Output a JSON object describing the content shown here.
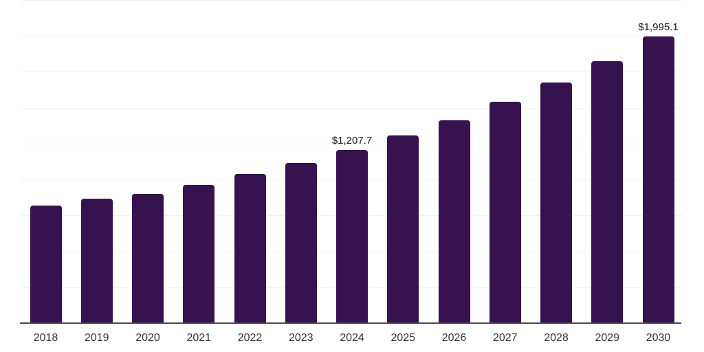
{
  "chart_data": {
    "type": "bar",
    "title": "",
    "xlabel": "",
    "ylabel": "",
    "categories": [
      "2018",
      "2019",
      "2020",
      "2021",
      "2022",
      "2023",
      "2024",
      "2025",
      "2026",
      "2027",
      "2028",
      "2029",
      "2030"
    ],
    "values": [
      819,
      866,
      900,
      962,
      1039,
      1115,
      1207.7,
      1307,
      1412,
      1542,
      1676,
      1824,
      1995.1
    ],
    "data_labels": [
      "",
      "",
      "",
      "",
      "",
      "",
      "$1,207.7",
      "",
      "",
      "",
      "",
      "",
      "$1,995.1"
    ],
    "ylim": [
      0,
      2250
    ],
    "gridline_step": 250,
    "grid": "horizontal-only",
    "legend": "none",
    "bar_color": "#36124e",
    "axis_line_color": "#4a4a4a",
    "gridline_color": "#f1f1f3",
    "tick_label_color": "#333333",
    "data_label_color": "#171717"
  }
}
